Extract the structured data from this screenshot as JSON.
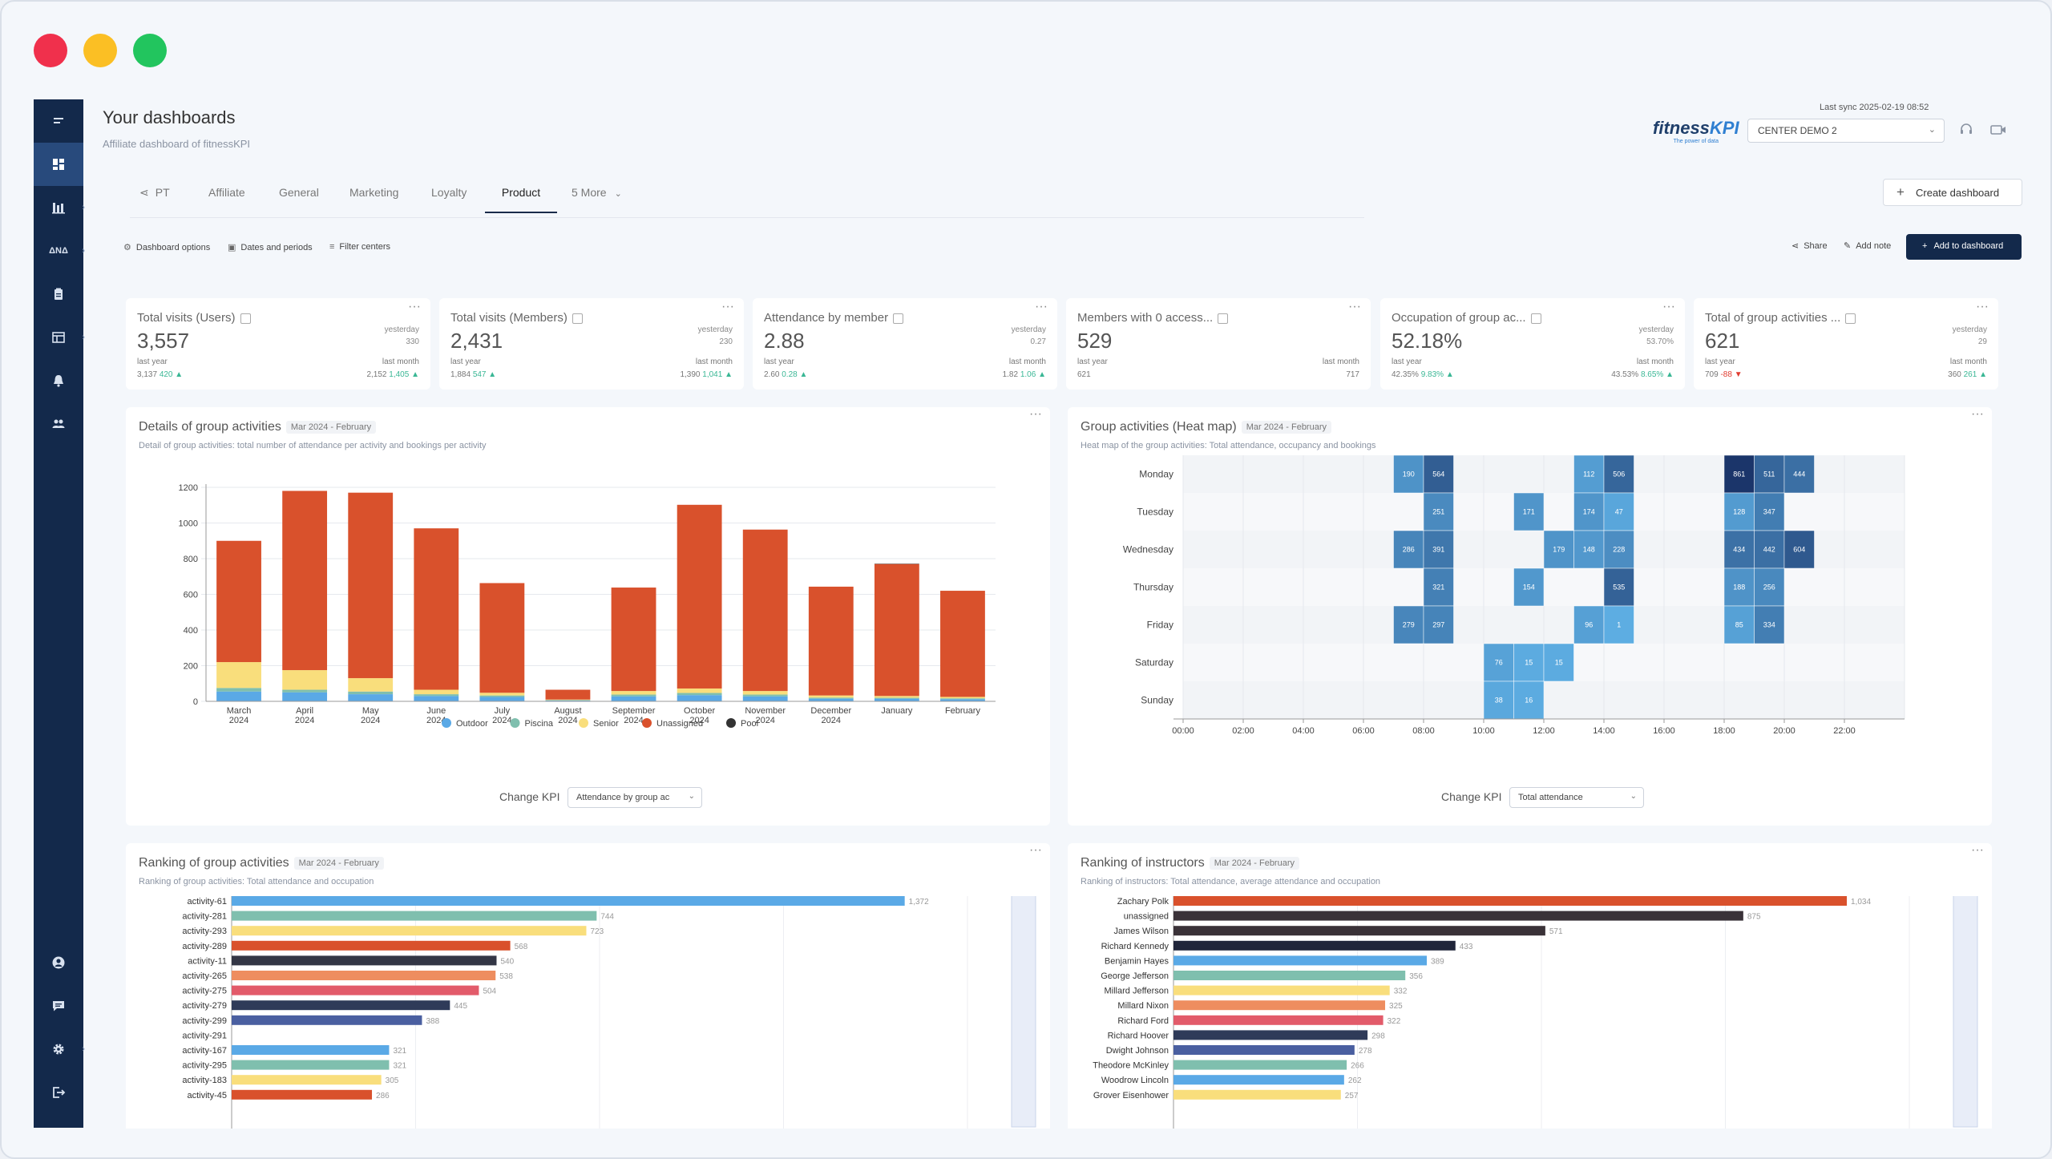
{
  "window": {
    "controls": {
      "close_color": "#f0304c",
      "minimize_color": "#fbbf24",
      "maximize_color": "#22c55e"
    }
  },
  "sidebar": {
    "items": [
      {
        "icon": "menu-icon"
      },
      {
        "icon": "dashboard-icon"
      },
      {
        "icon": "bar-chart-icon"
      },
      {
        "icon": "analytics-icon",
        "label": "ΔΝΔ"
      },
      {
        "icon": "clipboard-icon"
      },
      {
        "icon": "table-icon"
      },
      {
        "icon": "bell-icon"
      },
      {
        "icon": "users-icon"
      },
      {
        "icon": "user-circle-icon"
      },
      {
        "icon": "message-icon"
      },
      {
        "icon": "gear-icon"
      },
      {
        "icon": "logout-icon"
      }
    ]
  },
  "header": {
    "title": "Your dashboards",
    "subtitle": "Affiliate dashboard of fitnessKPI",
    "logo_a": "fitness",
    "logo_b": "KPI",
    "logo_tag": "The power of data",
    "last_sync": "Last sync 2025-02-19 08:52",
    "center": "CENTER DEMO 2"
  },
  "tabs": [
    {
      "label": "PT"
    },
    {
      "label": "Affiliate"
    },
    {
      "label": "General"
    },
    {
      "label": "Marketing"
    },
    {
      "label": "Loyalty"
    },
    {
      "label": "Product",
      "active": true
    },
    {
      "label": "5 More"
    }
  ],
  "toolbar": {
    "create_dashboard": "Create dashboard",
    "dashboard_options": "Dashboard options",
    "dates_periods": "Dates and periods",
    "filter_centers": "Filter centers",
    "share": "Share",
    "add_note": "Add note",
    "add_to_dashboard": "Add to dashboard"
  },
  "kpis": [
    {
      "title": "Total visits (Users)",
      "value": "3,557",
      "yesterday_label": "yesterday",
      "yesterday": "330",
      "last_year_label": "last year",
      "last_year": "3,137",
      "last_year_delta": "420",
      "last_month_label": "last month",
      "last_month": "2,152",
      "last_month_delta": "1,405"
    },
    {
      "title": "Total visits (Members)",
      "value": "2,431",
      "yesterday_label": "yesterday",
      "yesterday": "230",
      "last_year_label": "last year",
      "last_year": "1,884",
      "last_year_delta": "547",
      "last_month_label": "last month",
      "last_month": "1,390",
      "last_month_delta": "1,041"
    },
    {
      "title": "Attendance by member",
      "value": "2.88",
      "yesterday_label": "yesterday",
      "yesterday": "0.27",
      "last_year_label": "last year",
      "last_year": "2.60",
      "last_year_delta": "0.28",
      "last_month_label": "last month",
      "last_month": "1.82",
      "last_month_delta": "1.06"
    },
    {
      "title": "Members with 0 access...",
      "value": "529",
      "yesterday_label": "",
      "yesterday": "",
      "last_year_label": "last year",
      "last_year": "621",
      "last_year_delta": "",
      "last_month_label": "last month",
      "last_month": "717",
      "last_month_delta": ""
    },
    {
      "title": "Occupation of group ac...",
      "value": "52.18%",
      "yesterday_label": "yesterday",
      "yesterday": "53.70%",
      "last_year_label": "last year",
      "last_year": "42.35%",
      "last_year_delta": "9.83%",
      "last_month_label": "last month",
      "last_month": "43.53%",
      "last_month_delta": "8.65%"
    },
    {
      "title": "Total of group activities ...",
      "value": "621",
      "yesterday_label": "yesterday",
      "yesterday": "29",
      "last_year_label": "last year",
      "last_year": "709",
      "last_year_delta": "-88",
      "last_month_label": "last month",
      "last_month": "360",
      "last_month_delta": "261"
    }
  ],
  "panels": {
    "details": {
      "title": "Details of group activities",
      "date": "Mar 2024 - February",
      "subtitle": "Detail of group activities: total number of attendance per activity and bookings per activity",
      "change_kpi": "Change KPI",
      "kpi_value": "Attendance by group ac"
    },
    "heatmap": {
      "title": "Group activities (Heat map)",
      "date": "Mar 2024 - February",
      "subtitle": "Heat map of the group activities: Total attendance, occupancy and bookings",
      "change_kpi": "Change KPI",
      "kpi_value": "Total attendance"
    },
    "ranking_activities": {
      "title": "Ranking of group activities",
      "date": "Mar 2024 - February",
      "subtitle": "Ranking of group activities: Total attendance and occupation"
    },
    "ranking_instructors": {
      "title": "Ranking of instructors",
      "date": "Mar 2024 - February",
      "subtitle": "Ranking of instructors: Total attendance, average attendance and occupation"
    }
  },
  "chart_data": [
    {
      "type": "bar",
      "stacked": true,
      "categories": [
        "March 2024",
        "April 2024",
        "May 2024",
        "June 2024",
        "July 2024",
        "August 2024",
        "September 2024",
        "October 2024",
        "November 2024",
        "December 2024",
        "January",
        "February"
      ],
      "series": [
        {
          "name": "Outdoor",
          "color": "#5aa9e6",
          "values": [
            55,
            50,
            40,
            30,
            25,
            5,
            28,
            35,
            28,
            15,
            15,
            12
          ]
        },
        {
          "name": "Piscina",
          "color": "#7fbfae",
          "values": [
            20,
            15,
            15,
            10,
            8,
            2,
            10,
            12,
            10,
            6,
            5,
            5
          ]
        },
        {
          "name": "Senior",
          "color": "#f9de7c",
          "values": [
            145,
            110,
            75,
            25,
            15,
            3,
            20,
            25,
            20,
            12,
            10,
            8
          ]
        },
        {
          "name": "Unassigned",
          "color": "#d9512c",
          "values": [
            680,
            1005,
            1040,
            905,
            615,
            55,
            580,
            1030,
            905,
            610,
            740,
            595
          ]
        },
        {
          "name": "Pool",
          "color": "#333333",
          "values": [
            0,
            0,
            0,
            0,
            0,
            0,
            0,
            0,
            0,
            0,
            2,
            0
          ]
        }
      ],
      "ylim": [
        0,
        1200
      ],
      "yticks": [
        0,
        200,
        400,
        600,
        800,
        1000,
        1200
      ],
      "legend": "bottom"
    },
    {
      "type": "heatmap",
      "rows": [
        "Monday",
        "Tuesday",
        "Wednesday",
        "Thursday",
        "Friday",
        "Saturday",
        "Sunday"
      ],
      "x_ticks": [
        "00:00",
        "02:00",
        "04:00",
        "06:00",
        "08:00",
        "10:00",
        "12:00",
        "14:00",
        "16:00",
        "18:00",
        "20:00",
        "22:00"
      ],
      "cells": [
        {
          "row": "Monday",
          "hour": 7,
          "value": 190
        },
        {
          "row": "Monday",
          "hour": 8,
          "value": 564
        },
        {
          "row": "Monday",
          "hour": 13,
          "value": 112
        },
        {
          "row": "Monday",
          "hour": 14,
          "value": 506
        },
        {
          "row": "Monday",
          "hour": 18,
          "value": 861
        },
        {
          "row": "Monday",
          "hour": 19,
          "value": 511
        },
        {
          "row": "Monday",
          "hour": 20,
          "value": 444
        },
        {
          "row": "Tuesday",
          "hour": 8,
          "value": 251
        },
        {
          "row": "Tuesday",
          "hour": 11,
          "value": 171
        },
        {
          "row": "Tuesday",
          "hour": 13,
          "value": 174
        },
        {
          "row": "Tuesday",
          "hour": 14,
          "value": 47
        },
        {
          "row": "Tuesday",
          "hour": 18,
          "value": 128
        },
        {
          "row": "Tuesday",
          "hour": 19,
          "value": 347
        },
        {
          "row": "Wednesday",
          "hour": 7,
          "value": 286
        },
        {
          "row": "Wednesday",
          "hour": 8,
          "value": 391
        },
        {
          "row": "Wednesday",
          "hour": 12,
          "value": 179
        },
        {
          "row": "Wednesday",
          "hour": 13,
          "value": 148
        },
        {
          "row": "Wednesday",
          "hour": 14,
          "value": 228
        },
        {
          "row": "Wednesday",
          "hour": 18,
          "value": 434
        },
        {
          "row": "Wednesday",
          "hour": 19,
          "value": 442
        },
        {
          "row": "Wednesday",
          "hour": 20,
          "value": 604
        },
        {
          "row": "Thursday",
          "hour": 8,
          "value": 321
        },
        {
          "row": "Thursday",
          "hour": 11,
          "value": 154
        },
        {
          "row": "Thursday",
          "hour": 14,
          "value": 535
        },
        {
          "row": "Thursday",
          "hour": 18,
          "value": 188
        },
        {
          "row": "Thursday",
          "hour": 19,
          "value": 256
        },
        {
          "row": "Friday",
          "hour": 7,
          "value": 279
        },
        {
          "row": "Friday",
          "hour": 8,
          "value": 297
        },
        {
          "row": "Friday",
          "hour": 13,
          "value": 96
        },
        {
          "row": "Friday",
          "hour": 14,
          "value": 1
        },
        {
          "row": "Friday",
          "hour": 18,
          "value": 85
        },
        {
          "row": "Friday",
          "hour": 19,
          "value": 334
        },
        {
          "row": "Saturday",
          "hour": 10,
          "value": 76
        },
        {
          "row": "Saturday",
          "hour": 11,
          "value": 15
        },
        {
          "row": "Saturday",
          "hour": 12,
          "value": 15
        },
        {
          "row": "Sunday",
          "hour": 10,
          "value": 38
        },
        {
          "row": "Sunday",
          "hour": 11,
          "value": 16
        }
      ]
    },
    {
      "type": "bar",
      "orientation": "horizontal",
      "categories": [
        "activity-61",
        "activity-281",
        "activity-293",
        "activity-289",
        "activity-11",
        "activity-265",
        "activity-275",
        "activity-279",
        "activity-299",
        "activity-291",
        "activity-167",
        "activity-295",
        "activity-183",
        "activity-45"
      ],
      "values": [
        1372,
        744,
        723,
        568,
        540,
        538,
        504,
        445,
        388,
        0,
        321,
        321,
        305,
        286
      ],
      "value_labels": [
        "1,372",
        "744",
        "723",
        "568",
        "540",
        "538",
        "504",
        "445",
        "388",
        "",
        "321",
        "321",
        "305",
        "286"
      ],
      "colors": [
        "#5aa9e6",
        "#7fbfae",
        "#f9de7c",
        "#d9512c",
        "#333645",
        "#ee8d5f",
        "#e25b6a",
        "#2f3b59",
        "#4a5fa0",
        "#20253a",
        "#5aa9e6",
        "#7fbfae",
        "#f9de7c",
        "#d9512c"
      ]
    },
    {
      "type": "bar",
      "orientation": "horizontal",
      "categories": [
        "Zachary Polk",
        "unassigned",
        "James Wilson",
        "Richard Kennedy",
        "Benjamin Hayes",
        "George Jefferson",
        "Millard Jefferson",
        "Millard Nixon",
        "Richard Ford",
        "Richard Hoover",
        "Dwight Johnson",
        "Theodore McKinley",
        "Woodrow Lincoln",
        "Grover Eisenhower"
      ],
      "values": [
        1034,
        875,
        571,
        433,
        389,
        356,
        332,
        325,
        322,
        298,
        278,
        266,
        262,
        257
      ],
      "value_labels": [
        "1,034",
        "875",
        "571",
        "433",
        "389",
        "356",
        "332",
        "325",
        "322",
        "298",
        "278",
        "266",
        "262",
        "257"
      ],
      "colors": [
        "#d9512c",
        "#3a3238",
        "#3a3238",
        "#20253a",
        "#5aa9e6",
        "#7fbfae",
        "#f9de7c",
        "#ee8d5f",
        "#e25b6a",
        "#2f3b59",
        "#4a5fa0",
        "#7fbfae",
        "#5aa9e6",
        "#f9de7c"
      ]
    }
  ]
}
